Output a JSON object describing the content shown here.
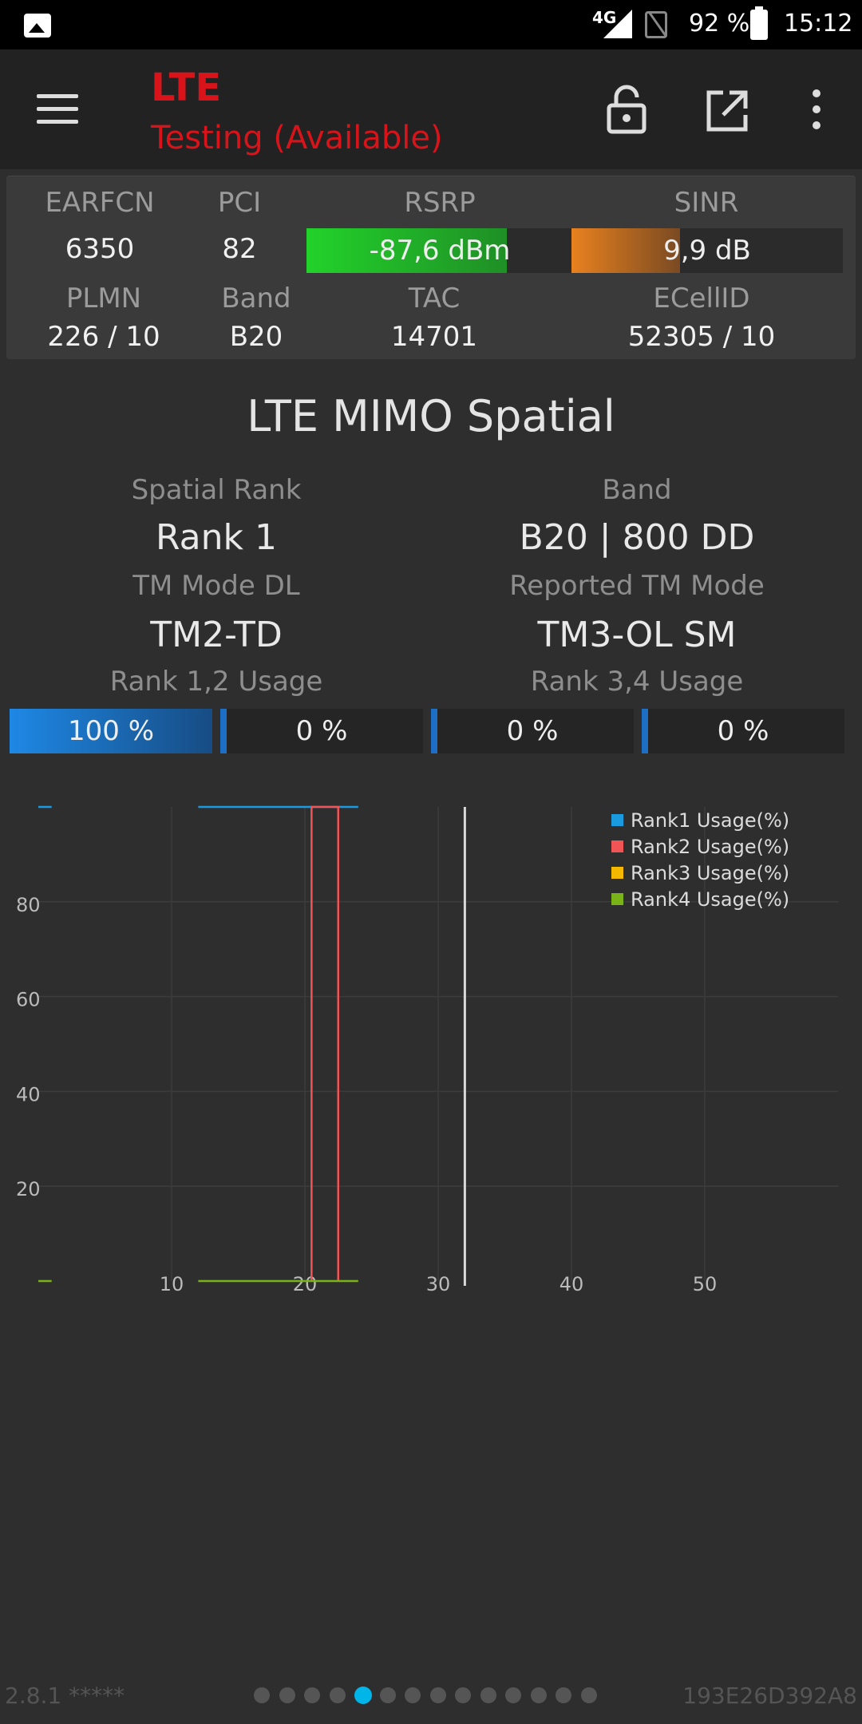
{
  "status_bar": {
    "network": "4G",
    "battery": "92 %",
    "time": "15:12"
  },
  "toolbar": {
    "title": "LTE",
    "subtitle": "Testing (Available)"
  },
  "cell_info": {
    "earfcn_label": "EARFCN",
    "earfcn_value": "6350",
    "pci_label": "PCI",
    "pci_value": "82",
    "rsrp_label": "RSRP",
    "rsrp_value": "-87,6 dBm",
    "rsrp_level": 0.75,
    "sinr_label": "SINR",
    "sinr_value": "9,9 dB",
    "sinr_level": 0.4,
    "plmn_label": "PLMN",
    "plmn_value": "226 / 10",
    "band_label": "Band",
    "band_value": "B20",
    "tac_label": "TAC",
    "tac_value": "14701",
    "ecellid_label": "ECellID",
    "ecellid_value": "52305 / 10"
  },
  "mimo": {
    "title": "LTE MIMO Spatial",
    "spatial_rank_label": "Spatial Rank",
    "spatial_rank_value": "Rank 1",
    "band_label": "Band",
    "band_value": "B20 | 800 DD",
    "tm_mode_dl_label": "TM Mode DL",
    "tm_mode_dl_value": "TM2-TD",
    "reported_tm_label": "Reported TM Mode",
    "reported_tm_value": "TM3-OL SM",
    "rank12_label": "Rank 1,2 Usage",
    "rank34_label": "Rank 3,4 Usage",
    "usage": [
      {
        "text": "100 %",
        "value": 100
      },
      {
        "text": "0 %",
        "value": 0
      },
      {
        "text": "0 %",
        "value": 0
      },
      {
        "text": "0 %",
        "value": 0
      }
    ]
  },
  "chart_data": {
    "type": "line",
    "x_ticks": [
      "10",
      "20",
      "30",
      "40",
      "50"
    ],
    "y_ticks": [
      "20",
      "40",
      "60",
      "80"
    ],
    "xlim": [
      0,
      60
    ],
    "ylim": [
      0,
      100
    ],
    "grid": true,
    "legend_position": "top-right",
    "cursor_x": 32,
    "series": [
      {
        "name": "Rank1 Usage(%)",
        "color": "#1a9be0",
        "segments": [
          [
            [
              0,
              100
            ],
            [
              1,
              100
            ]
          ],
          [
            [
              12,
              100
            ],
            [
              24,
              100
            ]
          ]
        ]
      },
      {
        "name": "Rank2 Usage(%)",
        "color": "#f05454",
        "segments": [
          [
            [
              20.5,
              0
            ],
            [
              20.5,
              100
            ],
            [
              22.5,
              100
            ],
            [
              22.5,
              0
            ]
          ]
        ]
      },
      {
        "name": "Rank3 Usage(%)",
        "color": "#f5b800",
        "segments": []
      },
      {
        "name": "Rank4 Usage(%)",
        "color": "#7ab317",
        "segments": [
          [
            [
              0,
              0
            ],
            [
              1,
              0
            ]
          ],
          [
            [
              12,
              0
            ],
            [
              24,
              0
            ]
          ]
        ]
      }
    ]
  },
  "footer": {
    "version": "2.8.1 *****",
    "device_id": "193E26D392A8",
    "page_count": 14,
    "active_page": 4
  }
}
